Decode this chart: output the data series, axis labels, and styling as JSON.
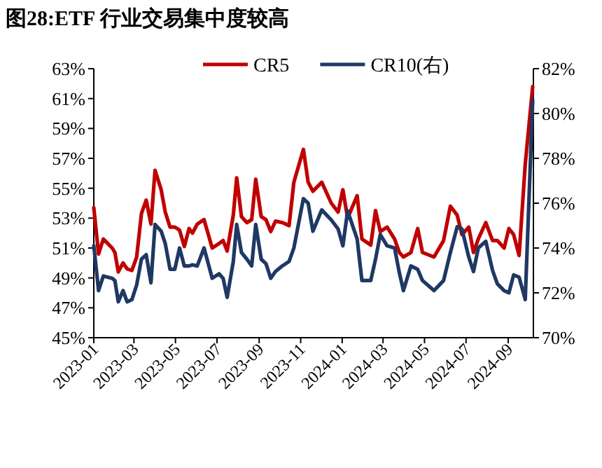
{
  "chart_data": {
    "type": "line",
    "title": "图28:ETF 行业交易集中度较高",
    "x": [
      "2023-01-01",
      "2023-01-08",
      "2023-01-15",
      "2023-01-28",
      "2023-02-01",
      "2023-02-06",
      "2023-02-13",
      "2023-02-19",
      "2023-02-26",
      "2023-03-05",
      "2023-03-12",
      "2023-03-19",
      "2023-03-26",
      "2023-04-01",
      "2023-04-10",
      "2023-04-16",
      "2023-04-23",
      "2023-04-30",
      "2023-05-07",
      "2023-05-14",
      "2023-05-21",
      "2023-05-26",
      "2023-06-02",
      "2023-06-12",
      "2023-06-24",
      "2023-07-04",
      "2023-07-10",
      "2023-07-16",
      "2023-07-25",
      "2023-07-30",
      "2023-08-06",
      "2023-08-14",
      "2023-08-21",
      "2023-08-27",
      "2023-09-04",
      "2023-09-11",
      "2023-09-18",
      "2023-09-25",
      "2023-10-05",
      "2023-10-15",
      "2023-10-22",
      "2023-11-05",
      "2023-11-12",
      "2023-11-19",
      "2023-12-02",
      "2023-12-16",
      "2023-12-26",
      "2024-01-02",
      "2024-01-09",
      "2024-01-23",
      "2024-01-30",
      "2024-02-12",
      "2024-02-19",
      "2024-02-26",
      "2024-03-07",
      "2024-03-18",
      "2024-03-25",
      "2024-03-31",
      "2024-04-11",
      "2024-04-21",
      "2024-04-28",
      "2024-05-15",
      "2024-05-29",
      "2024-06-08",
      "2024-06-18",
      "2024-06-25",
      "2024-07-05",
      "2024-07-12",
      "2024-07-19",
      "2024-07-30",
      "2024-08-09",
      "2024-08-16",
      "2024-08-26",
      "2024-09-02",
      "2024-09-09",
      "2024-09-17",
      "2024-09-26",
      "2024-10-07"
    ],
    "xlim": [
      "2023-01-01",
      "2024-10-08"
    ],
    "xticks": [
      "2023-01",
      "2023-03",
      "2023-05",
      "2023-07",
      "2023-09",
      "2023-11",
      "2024-01",
      "2024-03",
      "2024-05",
      "2024-07",
      "2024-09"
    ],
    "ylim": [
      45,
      63
    ],
    "yticks": [
      {
        "value": 45,
        "label": "45%"
      },
      {
        "value": 47,
        "label": "47%"
      },
      {
        "value": 49,
        "label": "49%"
      },
      {
        "value": 51,
        "label": "51%"
      },
      {
        "value": 53,
        "label": "53%"
      },
      {
        "value": 55,
        "label": "55%"
      },
      {
        "value": 57,
        "label": "57%"
      },
      {
        "value": 59,
        "label": "59%"
      },
      {
        "value": 61,
        "label": "61%"
      },
      {
        "value": 63,
        "label": "63%"
      }
    ],
    "y2lim": [
      70,
      82
    ],
    "y2ticks": [
      {
        "value": 70,
        "label": "70%"
      },
      {
        "value": 72,
        "label": "72%"
      },
      {
        "value": 74,
        "label": "74%"
      },
      {
        "value": 76,
        "label": "76%"
      },
      {
        "value": 78,
        "label": "78%"
      },
      {
        "value": 80,
        "label": "80%"
      },
      {
        "value": 82,
        "label": "82%"
      }
    ],
    "legend": "top",
    "series": [
      {
        "name": "CR5",
        "color": "#c00000",
        "values": [
          53.7,
          50.6,
          51.6,
          51.0,
          50.7,
          49.4,
          50.0,
          49.6,
          49.5,
          50.4,
          53.3,
          54.2,
          52.6,
          56.2,
          54.9,
          53.4,
          52.4,
          52.4,
          52.2,
          51.1,
          52.3,
          52.0,
          52.6,
          52.9,
          51.0,
          51.3,
          51.5,
          50.8,
          53.2,
          55.7,
          53.1,
          52.7,
          52.9,
          55.6,
          53.1,
          52.9,
          52.1,
          52.8,
          52.7,
          52.5,
          55.4,
          57.6,
          55.4,
          54.8,
          55.4,
          54.0,
          53.4,
          54.9,
          53.0,
          54.5,
          51.6,
          51.2,
          53.5,
          52.1,
          52.4,
          51.6,
          50.7,
          50.4,
          50.7,
          52.3,
          50.7,
          50.4,
          51.5,
          53.8,
          53.2,
          51.9,
          52.4,
          50.7,
          51.6,
          52.7,
          51.5,
          51.5,
          51.0,
          52.3,
          51.9,
          50.5,
          56.6,
          61.8
        ]
      },
      {
        "name": "CR10(右)",
        "color": "#1f3864",
        "axis": "y2",
        "values": [
          74.1,
          72.1,
          72.75,
          72.65,
          72.55,
          71.6,
          72.1,
          71.6,
          71.7,
          72.35,
          73.5,
          73.7,
          72.45,
          75.05,
          74.75,
          74.2,
          73.05,
          73.05,
          74.0,
          73.2,
          73.2,
          73.25,
          73.2,
          74.0,
          72.65,
          72.85,
          72.65,
          71.8,
          73.4,
          75.05,
          73.8,
          73.5,
          73.2,
          75.05,
          73.5,
          73.3,
          72.65,
          72.95,
          73.2,
          73.4,
          74.0,
          76.2,
          76.0,
          74.75,
          75.7,
          75.25,
          74.85,
          74.1,
          75.65,
          74.4,
          72.55,
          72.55,
          73.5,
          74.6,
          74.1,
          74.0,
          72.9,
          72.1,
          73.2,
          73.05,
          72.55,
          72.1,
          72.55,
          73.8,
          74.95,
          74.85,
          73.6,
          72.95,
          74.0,
          74.3,
          73.0,
          72.4,
          72.1,
          72.0,
          72.8,
          72.7,
          71.7,
          80.6
        ]
      }
    ]
  }
}
